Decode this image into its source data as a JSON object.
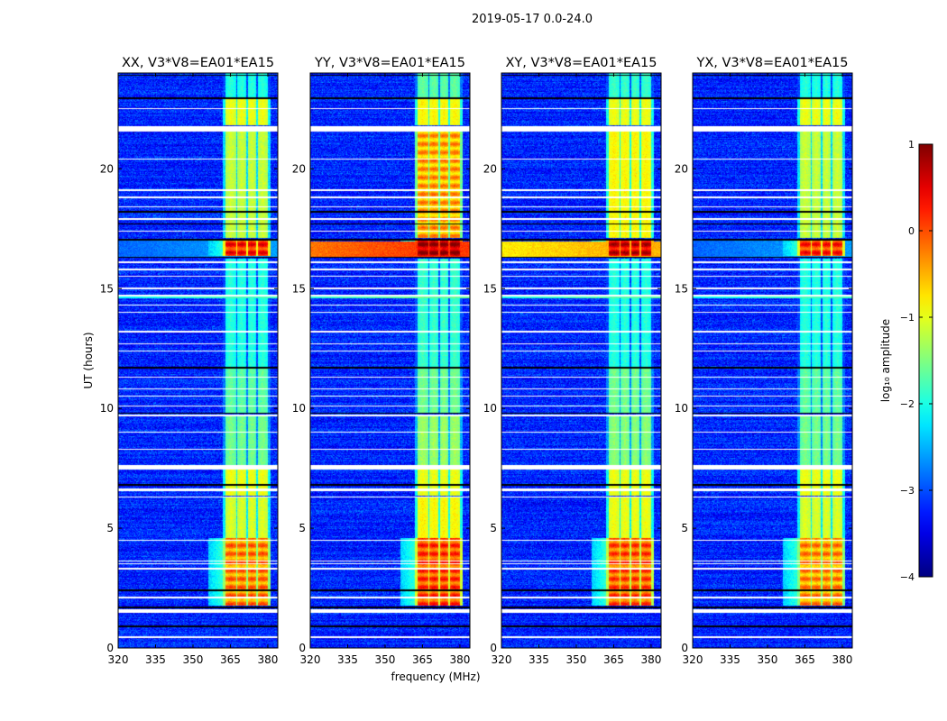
{
  "chart_data": {
    "type": "heatmap",
    "title": "2019-05-17 0.0-24.0",
    "xlabel": "frequency (MHz)",
    "ylabel": "UT (hours)",
    "xlim": [
      320,
      384
    ],
    "ylim": [
      0,
      24
    ],
    "xticks": [
      320,
      335,
      350,
      365,
      380
    ],
    "yticks": [
      0,
      5,
      10,
      15,
      20
    ],
    "colorbar": {
      "label": "log₁₀ amplitude",
      "range": [
        -4,
        1
      ],
      "ticks": [
        1,
        0,
        -1,
        -2,
        -3,
        -4
      ],
      "tick_labels": [
        "1",
        "0",
        "−1",
        "−2",
        "−3",
        "−4"
      ],
      "colormap": "jet"
    },
    "background_level": -3.2,
    "flagged_rows_hours": [
      [
        0.42,
        0.48
      ],
      [
        1.45,
        1.6
      ],
      [
        2.08,
        2.13
      ],
      [
        3.28,
        3.33
      ],
      [
        3.5,
        3.55
      ],
      [
        3.62,
        3.66
      ],
      [
        4.48,
        4.53
      ],
      [
        6.28,
        6.33
      ],
      [
        6.55,
        6.65
      ],
      [
        7.45,
        7.62
      ],
      [
        8.28,
        8.33
      ],
      [
        8.98,
        9.03
      ],
      [
        9.68,
        9.73
      ],
      [
        10.08,
        10.13
      ],
      [
        10.48,
        10.53
      ],
      [
        10.78,
        10.83
      ],
      [
        11.28,
        11.33
      ],
      [
        12.38,
        12.43
      ],
      [
        12.68,
        12.73
      ],
      [
        13.18,
        13.23
      ],
      [
        13.98,
        14.03
      ],
      [
        14.28,
        14.33
      ],
      [
        14.68,
        14.73
      ],
      [
        14.98,
        15.03
      ],
      [
        15.48,
        15.53
      ],
      [
        15.78,
        15.83
      ],
      [
        16.08,
        16.13
      ],
      [
        17.38,
        17.43
      ],
      [
        17.88,
        17.93
      ],
      [
        18.38,
        18.43
      ],
      [
        18.78,
        18.83
      ],
      [
        19.08,
        19.13
      ],
      [
        20.38,
        20.43
      ],
      [
        21.55,
        21.78
      ],
      [
        22.5,
        22.55
      ]
    ],
    "gap_rows_hours": [
      0.9,
      1.7,
      2.4,
      6.8,
      9.8,
      11.7,
      16.3,
      17.05,
      17.7,
      18.2,
      22.95,
      23.9
    ],
    "rfi_subbands_mhz": [
      [
        363,
        367.3
      ],
      [
        367.9,
        371.3
      ],
      [
        371.9,
        375.3
      ],
      [
        375.9,
        380
      ]
    ],
    "panels": [
      {
        "title": "XX, V3*V8=EA01*EA15",
        "rfi_segments": [
          [
            1.75,
            4.6,
            -0.2
          ],
          [
            4.6,
            6.3,
            -1.0
          ],
          [
            6.35,
            7.45,
            -0.9
          ],
          [
            7.65,
            9.75,
            -1.5
          ],
          [
            9.8,
            11.65,
            -1.6
          ],
          [
            11.75,
            16.25,
            -1.9
          ],
          [
            16.35,
            17.0,
            0.3
          ],
          [
            17.1,
            21.55,
            -1.1
          ],
          [
            21.8,
            22.9,
            -0.9
          ],
          [
            22.95,
            24,
            -1.9
          ]
        ],
        "broadband": [
          [
            14.6,
            14.7,
            -1.8
          ],
          [
            16.3,
            17.0,
            -2.6
          ]
        ]
      },
      {
        "title": "YY, V3*V8=EA01*EA15",
        "rfi_segments": [
          [
            1.75,
            4.6,
            0.1
          ],
          [
            4.6,
            6.3,
            -0.8
          ],
          [
            6.35,
            7.45,
            -0.9
          ],
          [
            7.65,
            9.75,
            -1.3
          ],
          [
            9.8,
            11.65,
            -1.5
          ],
          [
            11.75,
            16.25,
            -1.8
          ],
          [
            16.35,
            17.0,
            0.8
          ],
          [
            17.1,
            21.55,
            -0.4
          ],
          [
            21.8,
            22.9,
            -0.8
          ],
          [
            22.95,
            24,
            -1.6
          ]
        ],
        "broadband": [
          [
            14.6,
            14.7,
            -1.6
          ],
          [
            16.3,
            16.95,
            0.1
          ]
        ]
      },
      {
        "title": "XY, V3*V8=EA01*EA15",
        "rfi_segments": [
          [
            1.75,
            4.6,
            0.0
          ],
          [
            4.6,
            6.3,
            -0.9
          ],
          [
            6.35,
            7.45,
            -0.9
          ],
          [
            7.65,
            9.75,
            -1.4
          ],
          [
            9.8,
            11.65,
            -1.5
          ],
          [
            11.75,
            16.25,
            -1.9
          ],
          [
            16.35,
            17.0,
            0.6
          ],
          [
            17.1,
            21.55,
            -0.8
          ],
          [
            21.8,
            22.9,
            -0.9
          ],
          [
            22.95,
            24,
            -1.8
          ]
        ],
        "broadband": [
          [
            14.6,
            14.7,
            -1.7
          ],
          [
            16.3,
            16.95,
            -0.5
          ]
        ]
      },
      {
        "title": "YX, V3*V8=EA01*EA15",
        "rfi_segments": [
          [
            1.75,
            4.6,
            -0.3
          ],
          [
            4.6,
            6.3,
            -1.0
          ],
          [
            6.35,
            7.45,
            -0.9
          ],
          [
            7.65,
            9.75,
            -1.5
          ],
          [
            9.8,
            11.65,
            -1.6
          ],
          [
            11.75,
            16.25,
            -1.9
          ],
          [
            16.35,
            17.0,
            0.2
          ],
          [
            17.1,
            21.55,
            -1.1
          ],
          [
            21.8,
            22.9,
            -0.9
          ],
          [
            22.95,
            24,
            -1.9
          ]
        ],
        "broadband": [
          [
            14.6,
            14.7,
            -1.8
          ],
          [
            16.3,
            17.0,
            -2.6
          ]
        ]
      }
    ]
  }
}
